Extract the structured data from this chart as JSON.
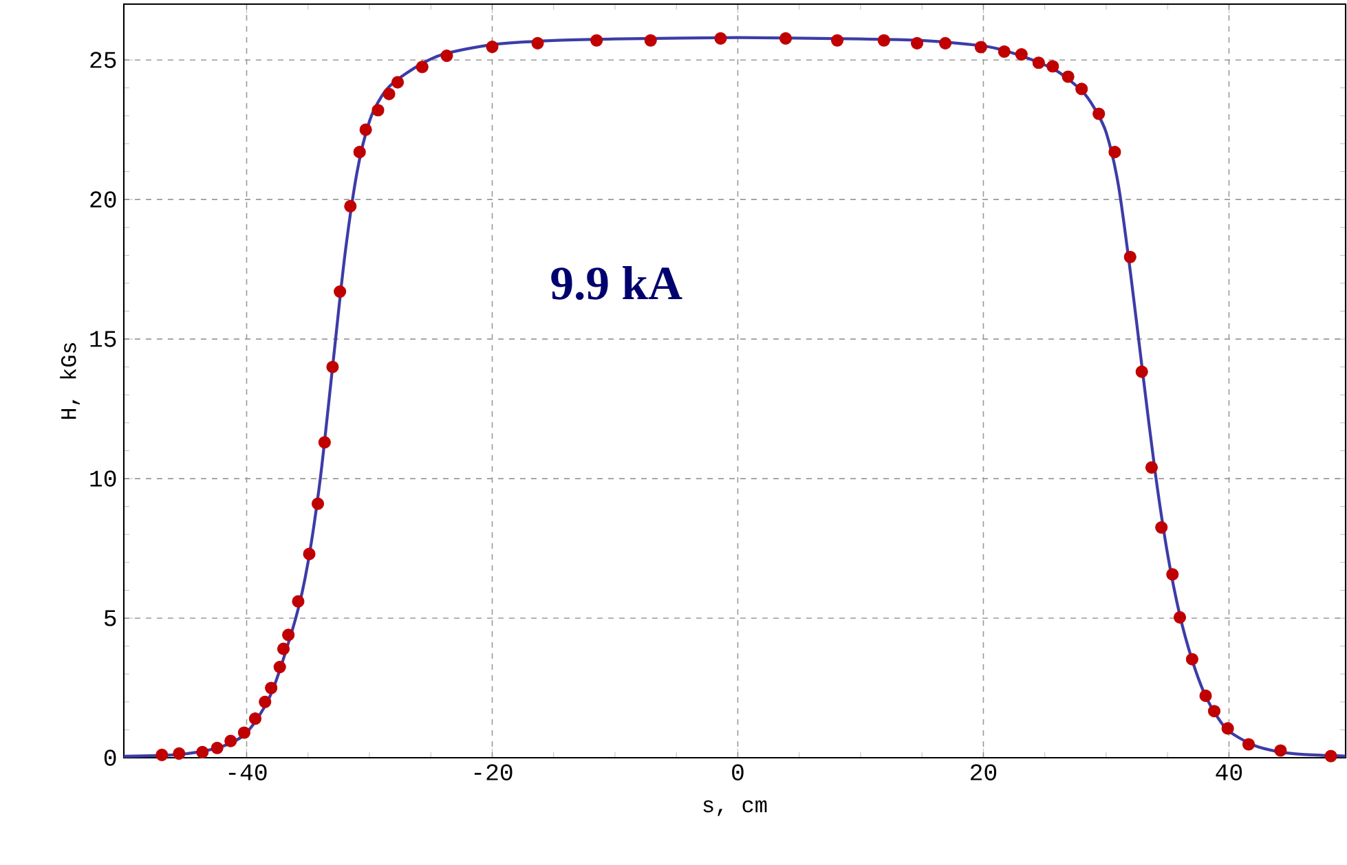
{
  "chart_data": {
    "type": "scatter",
    "xlabel": "s, cm",
    "ylabel": "H, kGs",
    "annotations": [
      "9.9 kA"
    ],
    "xlim": [
      -50,
      49.5
    ],
    "ylim": [
      0,
      27
    ],
    "xticks": [
      -40,
      -20,
      0,
      20,
      40
    ],
    "yticks": [
      0,
      5,
      10,
      15,
      20,
      25
    ],
    "grid": true,
    "series": [
      {
        "type": "line",
        "marker": "none",
        "color": "#3c3ca8",
        "x": [
          -50,
          -46,
          -44,
          -42,
          -40,
          -38,
          -36,
          -35,
          -34,
          -33,
          -32,
          -31,
          -30,
          -29,
          -28,
          -26,
          -24,
          -20,
          -15,
          -10,
          0,
          10,
          15,
          20,
          22,
          24,
          26,
          28,
          29,
          30,
          31,
          32,
          33,
          34,
          35,
          36,
          37,
          38,
          39,
          40,
          42,
          44,
          46,
          49.5
        ],
        "values": [
          0.05,
          0.1,
          0.2,
          0.4,
          0.9,
          2.3,
          5.0,
          7.0,
          10.0,
          14.0,
          18.0,
          21.0,
          22.8,
          23.7,
          24.2,
          24.8,
          25.2,
          25.55,
          25.7,
          25.75,
          25.8,
          25.75,
          25.7,
          25.5,
          25.3,
          25.0,
          24.6,
          23.9,
          23.3,
          22.4,
          20.5,
          17.3,
          13.7,
          10.2,
          7.3,
          5.1,
          3.5,
          2.3,
          1.5,
          0.95,
          0.45,
          0.22,
          0.12,
          0.06
        ]
      },
      {
        "marker": "circle",
        "color": "#c00000",
        "x": [
          -46.9,
          -45.5,
          -43.6,
          -42.4,
          -41.3,
          -40.2,
          -39.3,
          -38.5,
          -38.0,
          -37.3,
          -37.0,
          -36.6,
          -35.8,
          -34.9,
          -34.2,
          -33.65,
          -33.0,
          -32.4,
          -31.55,
          -30.8,
          -30.3,
          -29.3,
          -28.4,
          -27.7,
          -25.7,
          -23.7,
          -20.0,
          -16.3,
          -11.5,
          -7.1,
          -1.4,
          3.9,
          8.1,
          11.9,
          14.6,
          16.9,
          19.8,
          21.7,
          23.1,
          24.5,
          25.65,
          26.9,
          28.0,
          29.4,
          30.7,
          31.95,
          32.9,
          33.7,
          34.5,
          35.4,
          36.0,
          37.0,
          38.1,
          38.8,
          39.9,
          41.6,
          44.2,
          48.3
        ],
        "values": [
          0.1,
          0.15,
          0.2,
          0.35,
          0.6,
          0.9,
          1.4,
          2.0,
          2.5,
          3.25,
          3.9,
          4.4,
          5.6,
          7.3,
          9.1,
          11.3,
          14.0,
          16.7,
          19.76,
          21.7,
          22.5,
          23.2,
          23.78,
          24.2,
          24.75,
          25.15,
          25.47,
          25.6,
          25.7,
          25.7,
          25.77,
          25.77,
          25.7,
          25.7,
          25.6,
          25.6,
          25.46,
          25.3,
          25.2,
          24.9,
          24.77,
          24.4,
          23.96,
          23.07,
          21.7,
          17.94,
          13.83,
          10.4,
          8.25,
          6.57,
          5.03,
          3.53,
          2.22,
          1.67,
          1.05,
          0.48,
          0.26,
          0.06
        ]
      }
    ]
  }
}
